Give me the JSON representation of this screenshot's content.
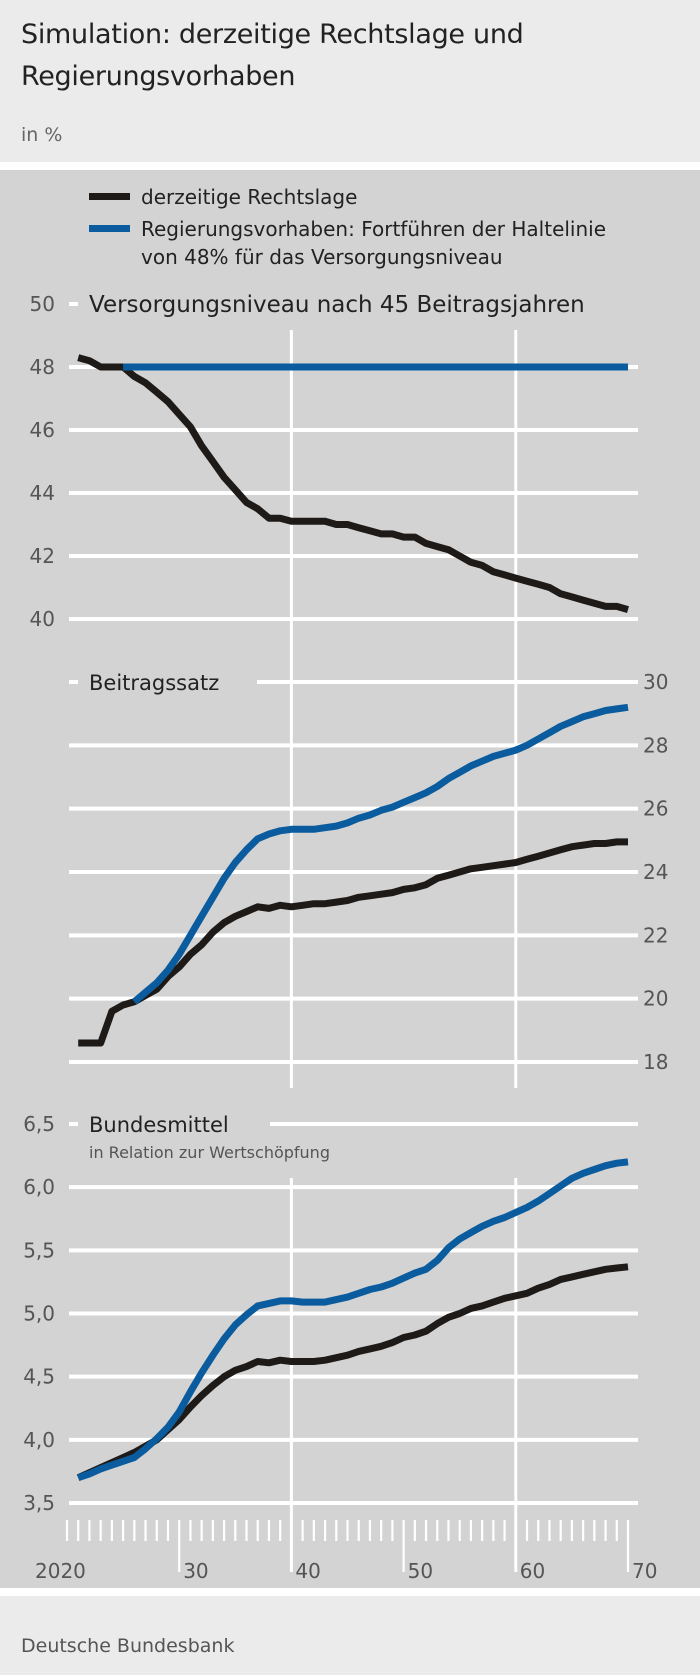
{
  "header": {
    "title": "Simulation: derzeitige Rechtslage und Regierungsvorhaben",
    "unit": "in %"
  },
  "legend": {
    "items": [
      {
        "label": "derzeitige Rechtslage",
        "color": "#1e1a18"
      },
      {
        "label_line1": "Regierungsvorhaben: Fortführen der Haltelinie",
        "label_line2": "von 48% für das Versorgungsniveau",
        "color": "#0a5c9e"
      }
    ]
  },
  "x_axis": {
    "range": [
      2020,
      2070
    ],
    "tick_labels": [
      "2020",
      "30",
      "40",
      "50",
      "60",
      "70"
    ],
    "vertical_gridlines_at": [
      2040,
      2060
    ]
  },
  "footer": {
    "source": "Deutsche Bundesbank"
  },
  "colors": {
    "background": "#d3d3d3",
    "black_series": "#1e1a18",
    "blue_series": "#0a5c9e",
    "grid": "#ffffff"
  },
  "chart_data": [
    {
      "type": "line",
      "title": "Versorgungsniveau nach 45 Beitragsjahren",
      "y_axis_side": "left",
      "ylim": [
        40,
        50
      ],
      "yticks": [
        "50",
        "48",
        "46",
        "44",
        "42",
        "40"
      ],
      "grid": true,
      "series": [
        {
          "name": "derzeitige Rechtslage",
          "start_year": 2021,
          "values": [
            48.3,
            48.2,
            48.0,
            48.0,
            48.0,
            47.7,
            47.5,
            47.2,
            46.9,
            46.5,
            46.1,
            45.5,
            45.0,
            44.5,
            44.1,
            43.7,
            43.5,
            43.2,
            43.2,
            43.1,
            43.1,
            43.1,
            43.1,
            43.0,
            43.0,
            42.9,
            42.8,
            42.7,
            42.7,
            42.6,
            42.6,
            42.4,
            42.3,
            42.2,
            42.0,
            41.8,
            41.7,
            41.5,
            41.4,
            41.3,
            41.2,
            41.1,
            41.0,
            40.8,
            40.7,
            40.6,
            40.5,
            40.4,
            40.4,
            40.3
          ]
        },
        {
          "name": "Regierungsvorhaben: Fortführen der Haltelinie von 48% für das Versorgungsniveau",
          "start_year": 2025,
          "values": [
            48,
            48,
            48,
            48,
            48,
            48,
            48,
            48,
            48,
            48,
            48,
            48,
            48,
            48,
            48,
            48,
            48,
            48,
            48,
            48,
            48,
            48,
            48,
            48,
            48,
            48,
            48,
            48,
            48,
            48,
            48,
            48,
            48,
            48,
            48,
            48,
            48,
            48,
            48,
            48,
            48,
            48,
            48,
            48,
            48,
            48
          ]
        }
      ]
    },
    {
      "type": "line",
      "title": "Beitragssatz",
      "y_axis_side": "right",
      "ylim": [
        18,
        30
      ],
      "yticks": [
        "30",
        "28",
        "26",
        "24",
        "22",
        "20",
        "18"
      ],
      "grid": true,
      "series": [
        {
          "name": "derzeitige Rechtslage",
          "start_year": 2021,
          "values": [
            18.6,
            18.6,
            18.6,
            19.6,
            19.8,
            19.9,
            20.1,
            20.3,
            20.7,
            21.0,
            21.4,
            21.7,
            22.1,
            22.4,
            22.6,
            22.75,
            22.9,
            22.85,
            22.95,
            22.9,
            22.95,
            23.0,
            23.0,
            23.05,
            23.1,
            23.2,
            23.25,
            23.3,
            23.35,
            23.45,
            23.5,
            23.6,
            23.8,
            23.9,
            24.0,
            24.1,
            24.15,
            24.2,
            24.25,
            24.3,
            24.4,
            24.5,
            24.6,
            24.7,
            24.8,
            24.85,
            24.9,
            24.9,
            24.95,
            24.95
          ]
        },
        {
          "name": "Regierungsvorhaben: Fortführen der Haltelinie von 48% für das Versorgungsniveau",
          "start_year": 2026,
          "values": [
            19.9,
            20.2,
            20.5,
            20.9,
            21.4,
            22.0,
            22.6,
            23.2,
            23.8,
            24.3,
            24.7,
            25.05,
            25.2,
            25.3,
            25.35,
            25.35,
            25.35,
            25.4,
            25.45,
            25.55,
            25.7,
            25.8,
            25.95,
            26.05,
            26.2,
            26.35,
            26.5,
            26.7,
            26.95,
            27.15,
            27.35,
            27.5,
            27.65,
            27.75,
            27.85,
            28.0,
            28.2,
            28.4,
            28.6,
            28.75,
            28.9,
            29.0,
            29.1,
            29.15,
            29.2
          ]
        }
      ]
    },
    {
      "type": "line",
      "title": "Bundesmittel",
      "subtitle": "in Relation zur Wertschöpfung",
      "y_axis_side": "left",
      "ylim": [
        3.5,
        6.5
      ],
      "yticks": [
        "6,5",
        "6,0",
        "5,5",
        "5,0",
        "4,5",
        "4,0",
        "3,5"
      ],
      "grid": true,
      "series": [
        {
          "name": "derzeitige Rechtslage",
          "start_year": 2021,
          "values": [
            3.7,
            3.74,
            3.78,
            3.82,
            3.86,
            3.9,
            3.95,
            4.0,
            4.08,
            4.16,
            4.26,
            4.35,
            4.43,
            4.5,
            4.55,
            4.58,
            4.62,
            4.61,
            4.63,
            4.62,
            4.62,
            4.62,
            4.63,
            4.65,
            4.67,
            4.7,
            4.72,
            4.74,
            4.77,
            4.81,
            4.83,
            4.86,
            4.92,
            4.97,
            5.0,
            5.04,
            5.06,
            5.09,
            5.12,
            5.14,
            5.16,
            5.2,
            5.23,
            5.27,
            5.29,
            5.31,
            5.33,
            5.35,
            5.36,
            5.37
          ]
        },
        {
          "name": "Regierungsvorhaben: Fortführen der Haltelinie von 48% für das Versorgungsniveau",
          "start_year": 2021,
          "values": [
            3.7,
            3.73,
            3.77,
            3.8,
            3.83,
            3.86,
            3.93,
            4.01,
            4.1,
            4.22,
            4.38,
            4.53,
            4.67,
            4.8,
            4.91,
            4.99,
            5.06,
            5.08,
            5.1,
            5.1,
            5.09,
            5.09,
            5.09,
            5.11,
            5.13,
            5.16,
            5.19,
            5.21,
            5.24,
            5.28,
            5.32,
            5.35,
            5.42,
            5.52,
            5.59,
            5.64,
            5.69,
            5.73,
            5.76,
            5.8,
            5.84,
            5.89,
            5.95,
            6.01,
            6.07,
            6.11,
            6.14,
            6.17,
            6.19,
            6.2
          ]
        }
      ]
    }
  ]
}
